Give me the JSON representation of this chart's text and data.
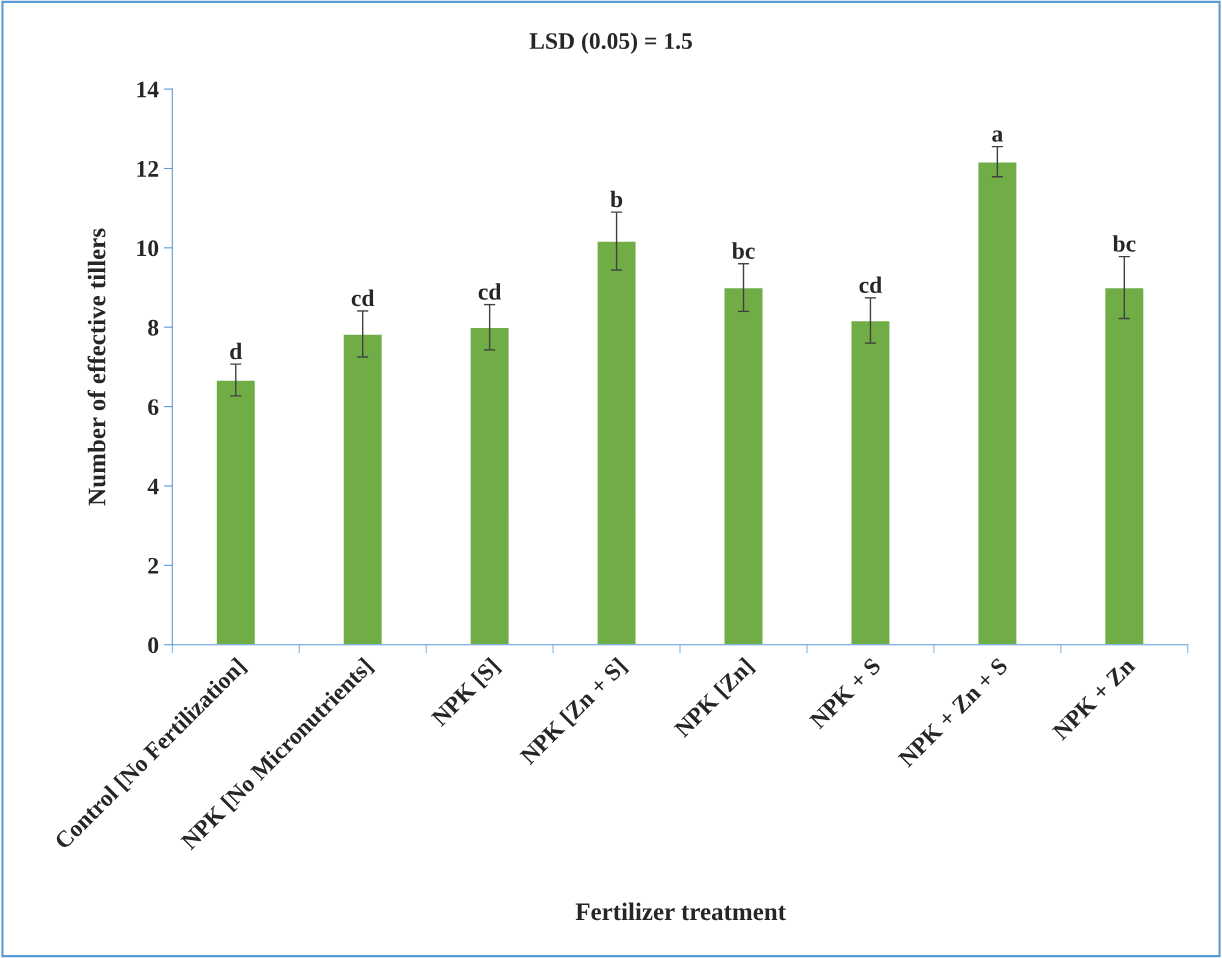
{
  "chart_data": {
    "type": "bar",
    "title": "LSD (0.05) = 1.5",
    "xlabel": "Fertilizer treatment",
    "ylabel": "Number of effective tillers",
    "categories": [
      "Control [No Fertilization]",
      "NPK [No Micronutrients]",
      "NPK [S]",
      "NPK [Zn + S]",
      "NPK [Zn]",
      "NPK + S",
      "NPK + Zn + S",
      "NPK + Zn"
    ],
    "values": [
      6.67,
      7.83,
      8.0,
      10.17,
      9.0,
      8.17,
      12.17,
      9.0
    ],
    "errors": [
      0.4,
      0.58,
      0.57,
      0.73,
      0.6,
      0.57,
      0.38,
      0.78
    ],
    "color": "#70ad47",
    "ylim": [
      0,
      14
    ],
    "yticks": [
      0,
      2,
      4,
      6,
      8,
      10,
      12,
      14
    ],
    "grid": false,
    "legend": false,
    "annotations": [
      {
        "text": "d",
        "x": "Control [No Fertilization]",
        "y": 7.07
      },
      {
        "text": "cd",
        "x": "NPK [No Micronutrients]",
        "y": 8.41
      },
      {
        "text": "cd",
        "x": "NPK [S]",
        "y": 8.57
      },
      {
        "text": "b",
        "x": "NPK [Zn + S]",
        "y": 10.9
      },
      {
        "text": "bc",
        "x": "NPK [Zn]",
        "y": 9.6
      },
      {
        "text": "cd",
        "x": "NPK + S",
        "y": 8.74
      },
      {
        "text": "a",
        "x": "NPK + Zn + S",
        "y": 12.55
      },
      {
        "text": "bc",
        "x": "NPK + Zn",
        "y": 9.78
      }
    ]
  }
}
